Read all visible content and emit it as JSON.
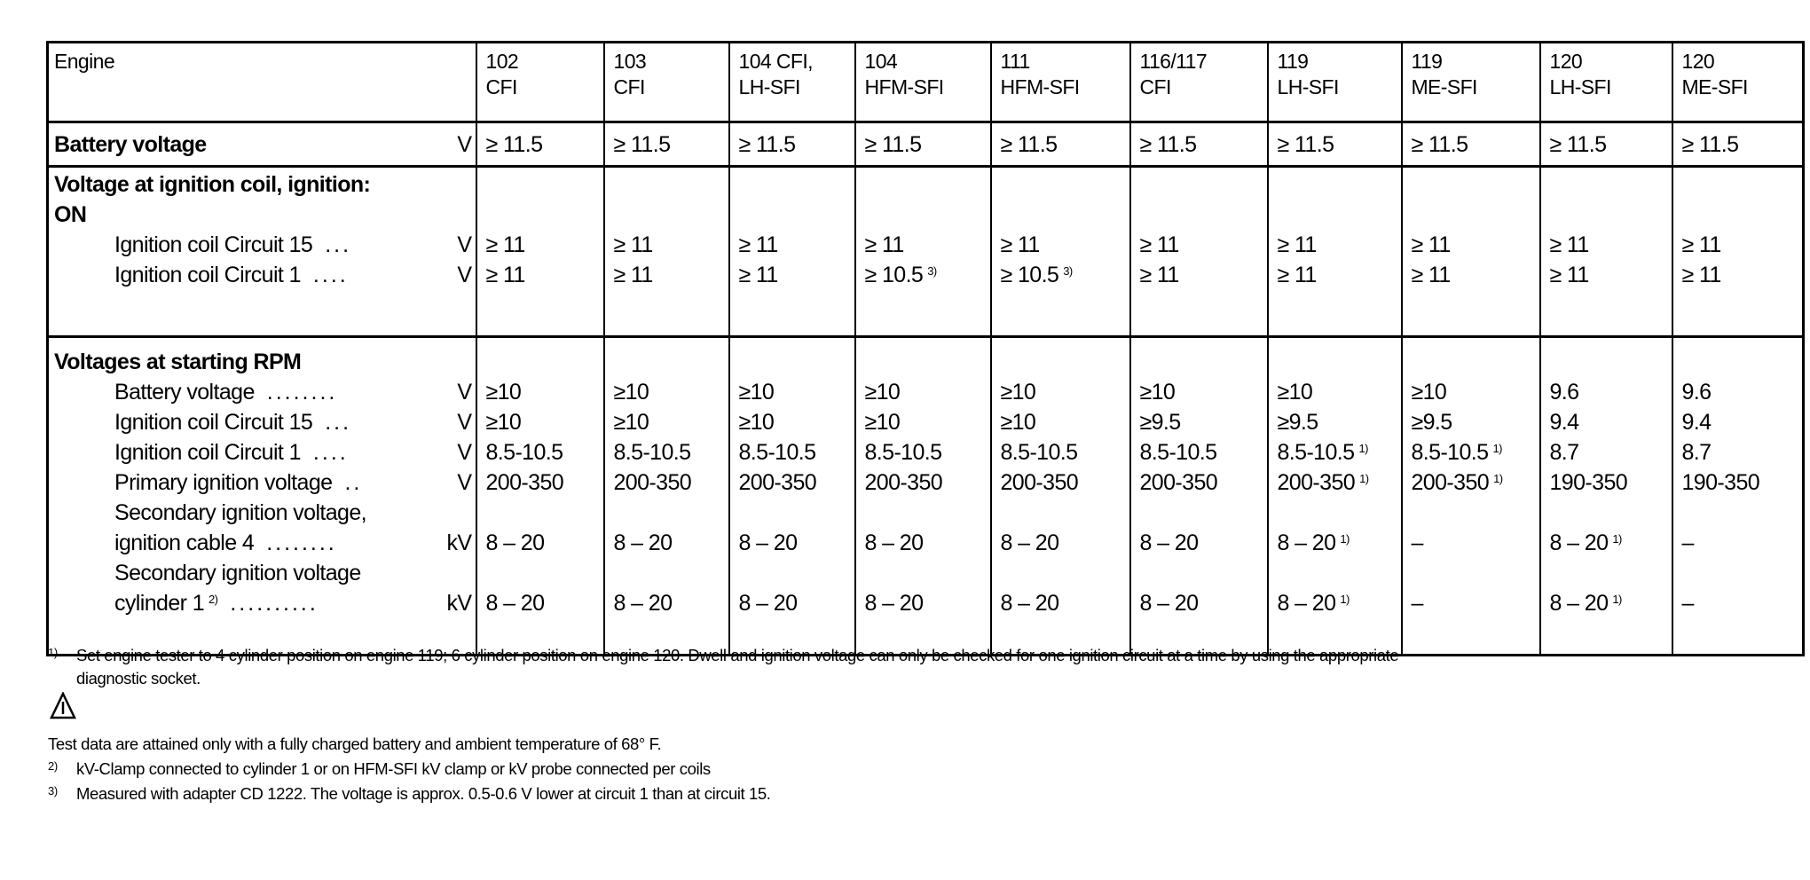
{
  "table": {
    "header_label": "Engine",
    "engines": [
      {
        "l1": "102",
        "l2": "CFI"
      },
      {
        "l1": "103",
        "l2": "CFI"
      },
      {
        "l1": "104 CFI,",
        "l2": "LH-SFI"
      },
      {
        "l1": "104",
        "l2": "HFM-SFI"
      },
      {
        "l1": "111",
        "l2": "HFM-SFI"
      },
      {
        "l1": "116/117",
        "l2": "CFI"
      },
      {
        "l1": "119",
        "l2": "LH-SFI"
      },
      {
        "l1": "119",
        "l2": "ME-SFI"
      },
      {
        "l1": "120",
        "l2": "LH-SFI"
      },
      {
        "l1": "120",
        "l2": "ME-SFI"
      }
    ],
    "battery": {
      "title": "Battery voltage",
      "unit": "V",
      "values": [
        "≥ 11.5",
        "≥ 11.5",
        "≥ 11.5",
        "≥ 11.5",
        "≥ 11.5",
        "≥ 11.5",
        "≥ 11.5",
        "≥ 11.5",
        "≥ 11.5",
        "≥ 11.5"
      ]
    },
    "ignition_on": {
      "title_lines": [
        "Voltage at ignition coil, ignition:",
        "ON"
      ],
      "rows": [
        {
          "label": [
            "Ignition coil Circuit 15"
          ],
          "leader": "...",
          "unit": "V",
          "values": [
            {
              "v": "≥ 11"
            },
            {
              "v": "≥ 11"
            },
            {
              "v": "≥ 11"
            },
            {
              "v": "≥ 11"
            },
            {
              "v": "≥ 11"
            },
            {
              "v": "≥ 11"
            },
            {
              "v": "≥ 11"
            },
            {
              "v": "≥ 11"
            },
            {
              "v": "≥ 11"
            },
            {
              "v": "≥ 11"
            }
          ]
        },
        {
          "label": [
            "Ignition coil Circuit 1"
          ],
          "leader": "....",
          "unit": "V",
          "values": [
            {
              "v": "≥ 11"
            },
            {
              "v": "≥ 11"
            },
            {
              "v": "≥ 11"
            },
            {
              "v": "≥ 10.5",
              "sup": "3)"
            },
            {
              "v": "≥ 10.5",
              "sup": "3)"
            },
            {
              "v": "≥ 11"
            },
            {
              "v": "≥ 11"
            },
            {
              "v": "≥ 11"
            },
            {
              "v": "≥ 11"
            },
            {
              "v": "≥ 11"
            }
          ]
        }
      ]
    },
    "starting_rpm": {
      "title_lines": [
        "Voltages at starting RPM"
      ],
      "rows": [
        {
          "label": [
            "Battery voltage"
          ],
          "leader": "........",
          "unit": "V",
          "values": [
            {
              "v": "≥10"
            },
            {
              "v": "≥10"
            },
            {
              "v": "≥10"
            },
            {
              "v": "≥10"
            },
            {
              "v": "≥10"
            },
            {
              "v": "≥10"
            },
            {
              "v": "≥10"
            },
            {
              "v": "≥10"
            },
            {
              "v": "9.6"
            },
            {
              "v": "9.6"
            }
          ]
        },
        {
          "label": [
            "Ignition coil Circuit 15"
          ],
          "leader": "...",
          "unit": "V",
          "values": [
            {
              "v": "≥10"
            },
            {
              "v": "≥10"
            },
            {
              "v": "≥10"
            },
            {
              "v": "≥10"
            },
            {
              "v": "≥10"
            },
            {
              "v": "≥9.5"
            },
            {
              "v": "≥9.5"
            },
            {
              "v": "≥9.5"
            },
            {
              "v": "9.4"
            },
            {
              "v": "9.4"
            }
          ]
        },
        {
          "label": [
            "Ignition coil Circuit 1"
          ],
          "leader": "....",
          "unit": "V",
          "values": [
            {
              "v": "8.5-10.5"
            },
            {
              "v": "8.5-10.5"
            },
            {
              "v": "8.5-10.5"
            },
            {
              "v": "8.5-10.5"
            },
            {
              "v": "8.5-10.5"
            },
            {
              "v": "8.5-10.5"
            },
            {
              "v": "8.5-10.5",
              "sup": "1)"
            },
            {
              "v": "8.5-10.5",
              "sup": "1)"
            },
            {
              "v": "8.7"
            },
            {
              "v": "8.7"
            }
          ]
        },
        {
          "label": [
            "Primary ignition voltage"
          ],
          "leader": "..",
          "unit": "V",
          "values": [
            {
              "v": "200-350"
            },
            {
              "v": "200-350"
            },
            {
              "v": "200-350"
            },
            {
              "v": "200-350"
            },
            {
              "v": "200-350"
            },
            {
              "v": "200-350"
            },
            {
              "v": "200-350",
              "sup": "1)"
            },
            {
              "v": "200-350",
              "sup": "1)"
            },
            {
              "v": "190-350"
            },
            {
              "v": "190-350"
            }
          ]
        },
        {
          "label": [
            "Secondary ignition voltage,",
            "ignition cable 4"
          ],
          "leader": "........",
          "unit": "kV",
          "values": [
            {
              "v": "8 – 20"
            },
            {
              "v": "8 – 20"
            },
            {
              "v": "8 – 20"
            },
            {
              "v": "8 – 20"
            },
            {
              "v": "8 – 20"
            },
            {
              "v": "8 – 20"
            },
            {
              "v": "8 – 20",
              "sup": "1)"
            },
            {
              "v": "–"
            },
            {
              "v": "8 – 20",
              "sup": "1)"
            },
            {
              "v": "–"
            }
          ]
        },
        {
          "label": [
            "Secondary ignition voltage",
            "cylinder 1"
          ],
          "label_sup": "2)",
          "leader": "..........",
          "unit": "kV",
          "values": [
            {
              "v": "8 – 20"
            },
            {
              "v": "8 – 20"
            },
            {
              "v": "8 – 20"
            },
            {
              "v": "8 – 20"
            },
            {
              "v": "8 – 20"
            },
            {
              "v": "8 – 20"
            },
            {
              "v": "8 – 20",
              "sup": "1)"
            },
            {
              "v": "–"
            },
            {
              "v": "8 – 20",
              "sup": "1)"
            },
            {
              "v": "–"
            }
          ]
        }
      ]
    }
  },
  "footnotes": {
    "note1_marker": "1)",
    "note1_line1": "Set engine tester to 4 cylinder position on engine 119; 6 cylinder position on engine 120. Dwell and ignition voltage can only be checked for one ignition circuit at a time by using the appropriate",
    "note1_line2": "diagnostic socket.",
    "warning_icon": "warning-triangle-icon",
    "warning_text": "Test data are attained only with a fully charged battery and ambient temperature of 68° F.",
    "note2_marker": "2)",
    "note2": "kV-Clamp connected to cylinder 1 or on HFM-SFI kV clamp or kV probe connected per coils",
    "note3_marker": "3)",
    "note3": "Measured with adapter CD 1222. The voltage is approx. 0.5-0.6 V lower at circuit 1 than at circuit 15."
  }
}
